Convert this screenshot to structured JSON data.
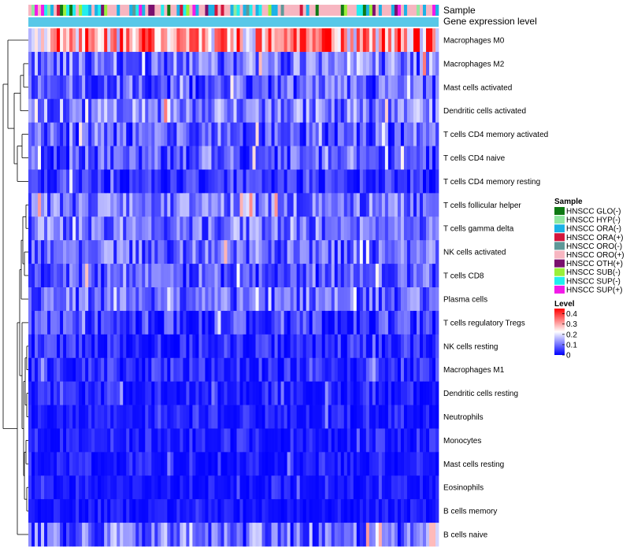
{
  "chart_data": {
    "type": "heatmap",
    "annotation_labels": {
      "sample": "Sample",
      "gene_expression_level": "Gene expression level"
    },
    "rows": [
      {
        "name": "Macrophages M0",
        "mean": 0.3,
        "spread": 0.16
      },
      {
        "name": "Macrophages M2",
        "mean": 0.1,
        "spread": 0.09
      },
      {
        "name": "Mast cells activated",
        "mean": 0.08,
        "spread": 0.08
      },
      {
        "name": "Dendritic cells activated",
        "mean": 0.11,
        "spread": 0.09
      },
      {
        "name": "T cells CD4 memory activated",
        "mean": 0.07,
        "spread": 0.08
      },
      {
        "name": "T cells CD4 naive",
        "mean": 0.07,
        "spread": 0.08
      },
      {
        "name": "T cells CD4 memory resting",
        "mean": 0.04,
        "spread": 0.06
      },
      {
        "name": "T cells follicular helper",
        "mean": 0.1,
        "spread": 0.08
      },
      {
        "name": "T cells gamma delta",
        "mean": 0.1,
        "spread": 0.08
      },
      {
        "name": "NK cells activated",
        "mean": 0.09,
        "spread": 0.08
      },
      {
        "name": "T cells CD8",
        "mean": 0.08,
        "spread": 0.08
      },
      {
        "name": "Plasma cells",
        "mean": 0.09,
        "spread": 0.08
      },
      {
        "name": "T cells regulatory  Tregs",
        "mean": 0.05,
        "spread": 0.07
      },
      {
        "name": "NK cells resting",
        "mean": 0.03,
        "spread": 0.06
      },
      {
        "name": "Macrophages M1",
        "mean": 0.03,
        "spread": 0.06
      },
      {
        "name": "Dendritic cells resting",
        "mean": 0.02,
        "spread": 0.05
      },
      {
        "name": "Neutrophils",
        "mean": 0.02,
        "spread": 0.05
      },
      {
        "name": "Monocytes",
        "mean": 0.02,
        "spread": 0.05
      },
      {
        "name": "Mast cells resting",
        "mean": 0.02,
        "spread": 0.05
      },
      {
        "name": "Eosinophils",
        "mean": 0.01,
        "spread": 0.04
      },
      {
        "name": "B cells memory",
        "mean": 0.01,
        "spread": 0.04
      },
      {
        "name": "B cells naive",
        "mean": 0.09,
        "spread": 0.1
      }
    ],
    "n_samples": 130,
    "sample_groups": [
      {
        "name": "HNSCC GLO(-)",
        "color": "#0F7A14"
      },
      {
        "name": "HNSCC HYP(-)",
        "color": "#8FE8A0"
      },
      {
        "name": "HNSCC ORA(-)",
        "color": "#1AB2E6"
      },
      {
        "name": "HNSCC ORA(+)",
        "color": "#D3163C"
      },
      {
        "name": "HNSCC ORO(-)",
        "color": "#5E9898"
      },
      {
        "name": "HNSCC ORO(+)",
        "color": "#F7B6C1"
      },
      {
        "name": "HNSCC OTH(+)",
        "color": "#7A0F6E"
      },
      {
        "name": "HNSCC SUB(-)",
        "color": "#9AF03A"
      },
      {
        "name": "HNSCC SUP(-)",
        "color": "#22EEEE"
      },
      {
        "name": "HNSCC SUP(+)",
        "color": "#F21AE8"
      }
    ],
    "sample_group_weights": [
      2,
      1,
      5,
      1,
      2,
      12,
      1,
      1,
      3,
      1
    ],
    "gene_expression_level_color": "#58C8E8",
    "legend": {
      "sample_title": "Sample",
      "level_title": "Level",
      "level_ticks": [
        "0.4",
        "0.3",
        "0.2",
        "0.1",
        "0"
      ],
      "level_range": [
        0,
        0.45
      ]
    },
    "colorscale": [
      "#0000FF",
      "#FFFFFF",
      "#FF0000"
    ]
  }
}
